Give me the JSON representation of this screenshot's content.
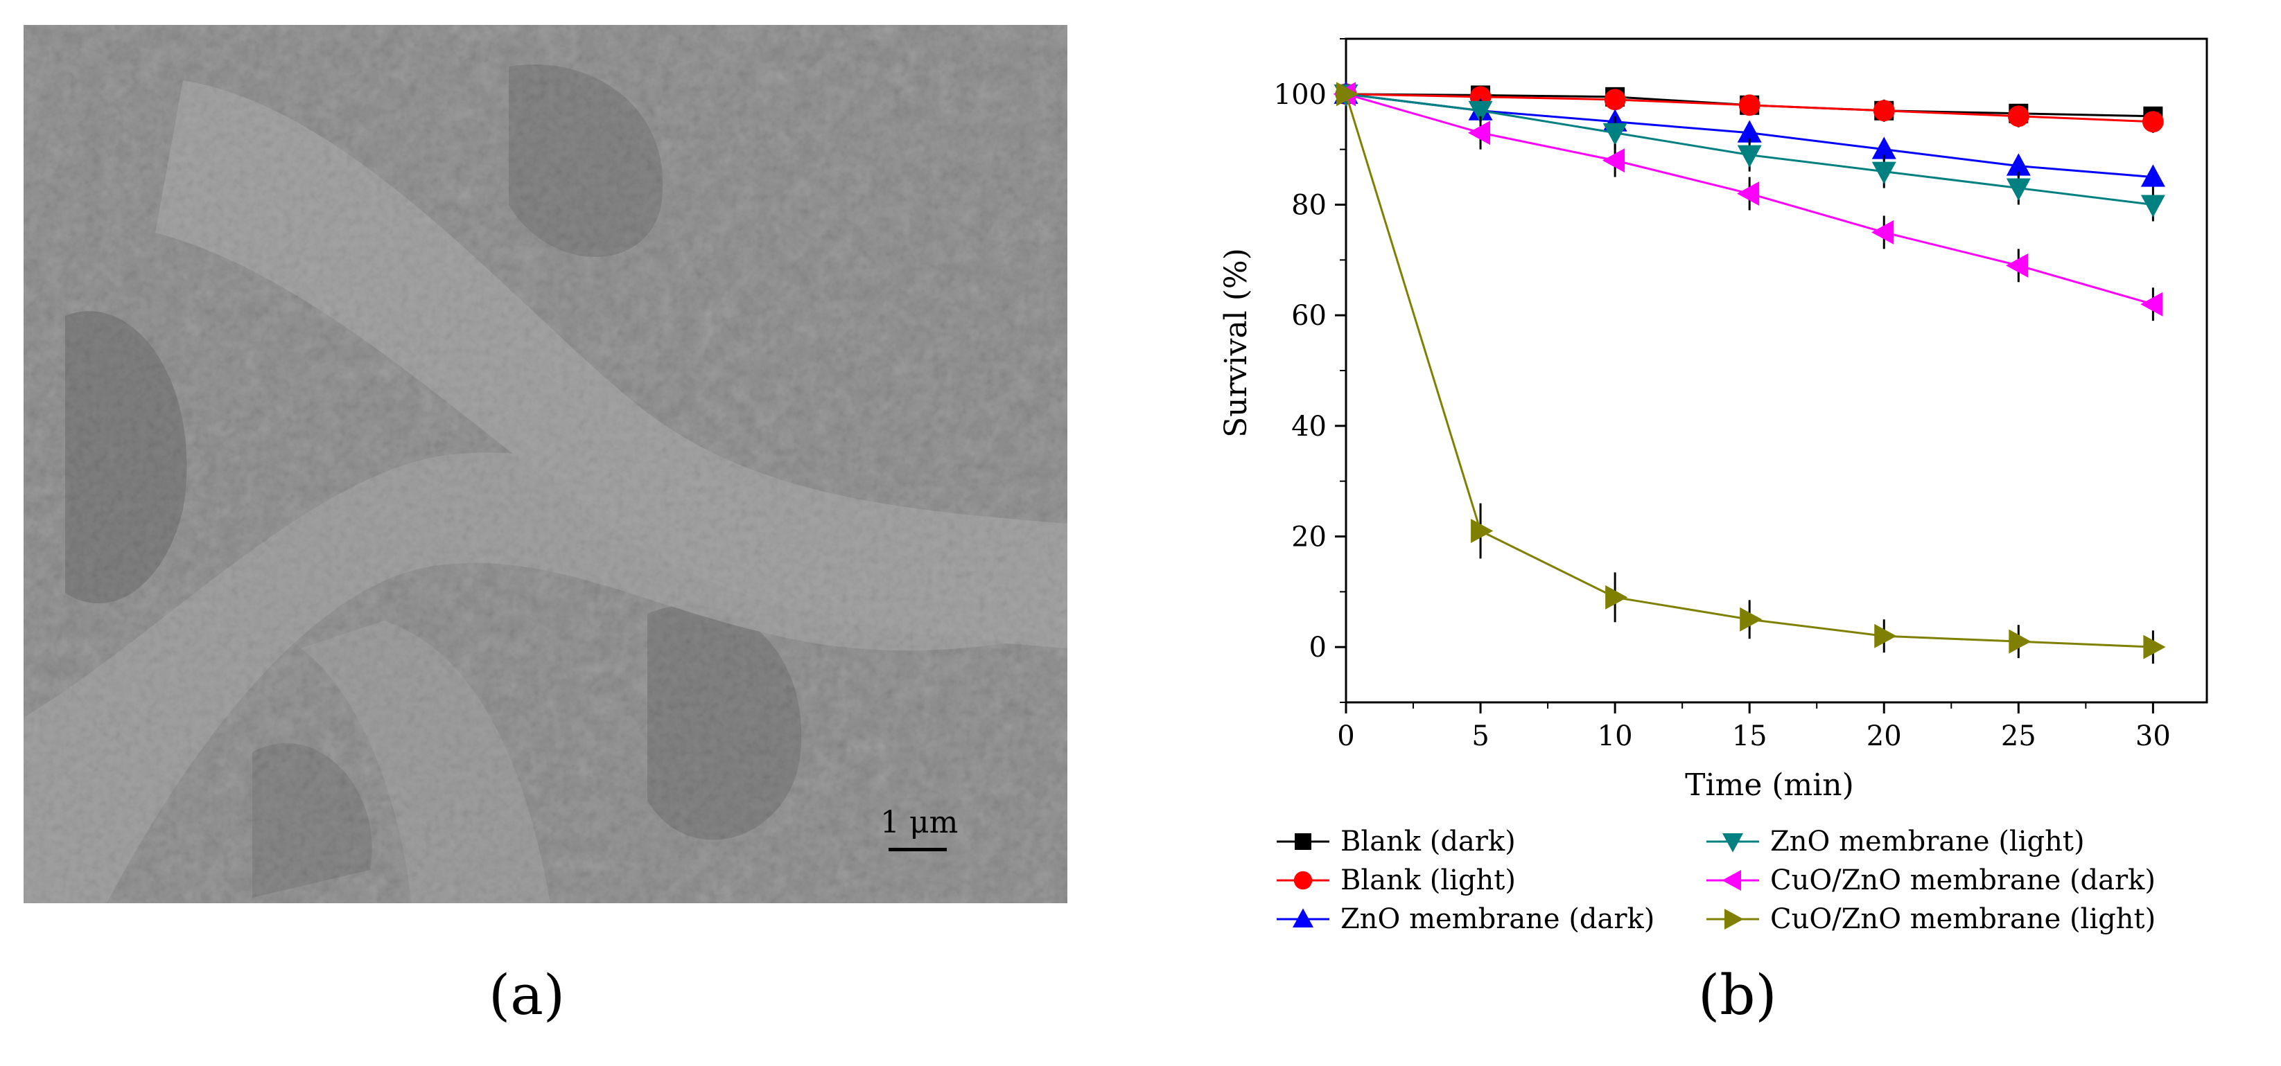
{
  "panels": {
    "a_label": "(a)",
    "b_label": "(b)",
    "a_scalebar": "1 μm",
    "a_image": "SEM micrograph of porous fibrous membrane"
  },
  "chart_data": {
    "type": "line",
    "xlabel": "Time (min)",
    "ylabel": "Survival (%)",
    "xlim": [
      0,
      32
    ],
    "ylim": [
      -10,
      110
    ],
    "xticks": [
      0,
      5,
      10,
      15,
      20,
      25,
      30
    ],
    "yticks": [
      0,
      20,
      40,
      60,
      80,
      100
    ],
    "x": [
      0,
      5,
      10,
      15,
      20,
      25,
      30
    ],
    "grid": false,
    "legend_position": "bottom",
    "series": [
      {
        "name": "Blank (dark)",
        "marker": "square",
        "color": "#000000",
        "values": [
          100,
          99.8,
          99.5,
          98,
          97,
          96.5,
          96
        ],
        "errors": [
          1,
          1,
          1.5,
          1.5,
          1.5,
          1.5,
          1.5
        ]
      },
      {
        "name": "Blank (light)",
        "marker": "circle",
        "color": "#ff0000",
        "values": [
          100,
          99.5,
          99,
          98,
          97,
          96,
          95
        ],
        "errors": [
          1,
          1,
          1.5,
          1.5,
          2,
          2,
          2
        ]
      },
      {
        "name": "ZnO membrane (dark)",
        "marker": "triangle-up",
        "color": "#0000ff",
        "values": [
          100,
          97,
          95,
          93,
          90,
          87,
          85
        ],
        "errors": [
          1,
          2,
          2,
          2,
          2,
          2,
          2
        ]
      },
      {
        "name": "ZnO membrane (light)",
        "marker": "triangle-down",
        "color": "#008080",
        "values": [
          100,
          97,
          93,
          89,
          86,
          83,
          80
        ],
        "errors": [
          1,
          2,
          3,
          3,
          3,
          3,
          3
        ]
      },
      {
        "name": "CuO/ZnO membrane (dark)",
        "marker": "triangle-left",
        "color": "#ff00ff",
        "values": [
          100,
          93,
          88,
          82,
          75,
          69,
          62
        ],
        "errors": [
          1,
          3,
          3,
          3,
          3,
          3,
          3
        ]
      },
      {
        "name": "CuO/ZnO membrane (light)",
        "marker": "triangle-right",
        "color": "#808000",
        "values": [
          100,
          21,
          9,
          5,
          2,
          1,
          0
        ],
        "errors": [
          1,
          5,
          4.5,
          3.5,
          3,
          3,
          3
        ]
      }
    ]
  }
}
